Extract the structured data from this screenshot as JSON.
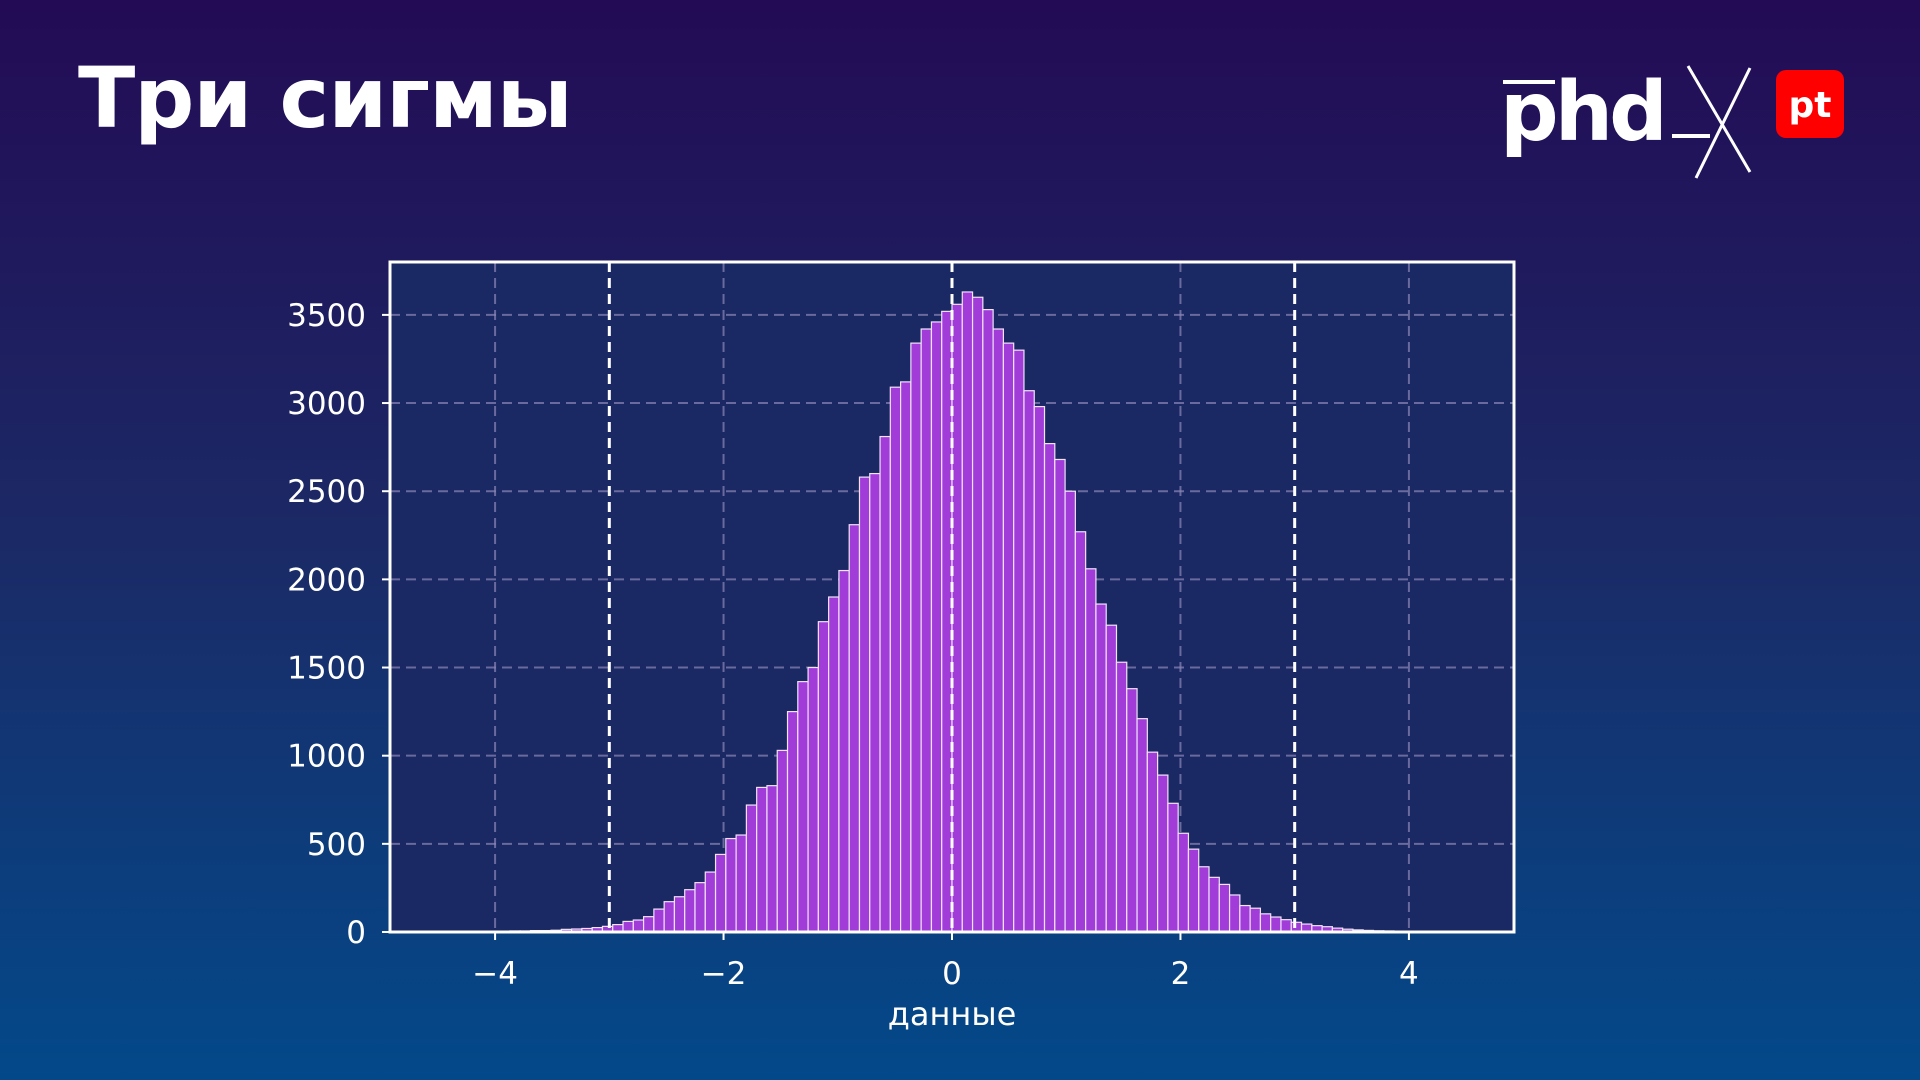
{
  "slide": {
    "title": "Три сигмы",
    "logo_text_left": "phd",
    "logo_text_right": "pt",
    "colors": {
      "background_top": "#230b55",
      "background_bottom": "#03498a",
      "bar": "#a23cd9",
      "logo_badge": "#ff0000"
    }
  },
  "chart_data": {
    "type": "bar",
    "subtype": "histogram",
    "title": "",
    "xlabel": "данные",
    "ylabel": "",
    "xlim": [
      -4.92,
      4.92
    ],
    "ylim": [
      0,
      3800
    ],
    "x_ticks": [
      -4,
      -2,
      0,
      2,
      4
    ],
    "x_tick_labels": [
      "−4",
      "−2",
      "0",
      "2",
      "4"
    ],
    "y_ticks": [
      0,
      500,
      1000,
      1500,
      2000,
      2500,
      3000,
      3500
    ],
    "y_tick_labels": [
      "0",
      "500",
      "1000",
      "1500",
      "2000",
      "2500",
      "3000",
      "3500"
    ],
    "grid": true,
    "bin_range": [
      -4.5,
      4.5
    ],
    "bin_width": 0.09,
    "counts": [
      1,
      0,
      1,
      2,
      3,
      4,
      5,
      6,
      6,
      8,
      8,
      10,
      15,
      17,
      20,
      25,
      32,
      42,
      60,
      68,
      87,
      130,
      172,
      200,
      240,
      280,
      340,
      440,
      530,
      550,
      720,
      820,
      830,
      1030,
      1250,
      1420,
      1500,
      1760,
      1900,
      2050,
      2310,
      2580,
      2600,
      2810,
      3090,
      3120,
      3340,
      3420,
      3460,
      3520,
      3560,
      3630,
      3600,
      3530,
      3420,
      3340,
      3300,
      3070,
      2980,
      2770,
      2680,
      2500,
      2270,
      2060,
      1860,
      1740,
      1530,
      1380,
      1210,
      1020,
      890,
      730,
      560,
      470,
      370,
      310,
      270,
      210,
      150,
      135,
      103,
      85,
      70,
      55,
      45,
      36,
      30,
      22,
      16,
      12,
      9,
      7,
      6,
      4,
      3,
      2,
      1,
      1,
      0,
      0
    ],
    "reference_lines": {
      "x": [
        -3,
        0,
        3
      ],
      "style": "dashed"
    }
  }
}
